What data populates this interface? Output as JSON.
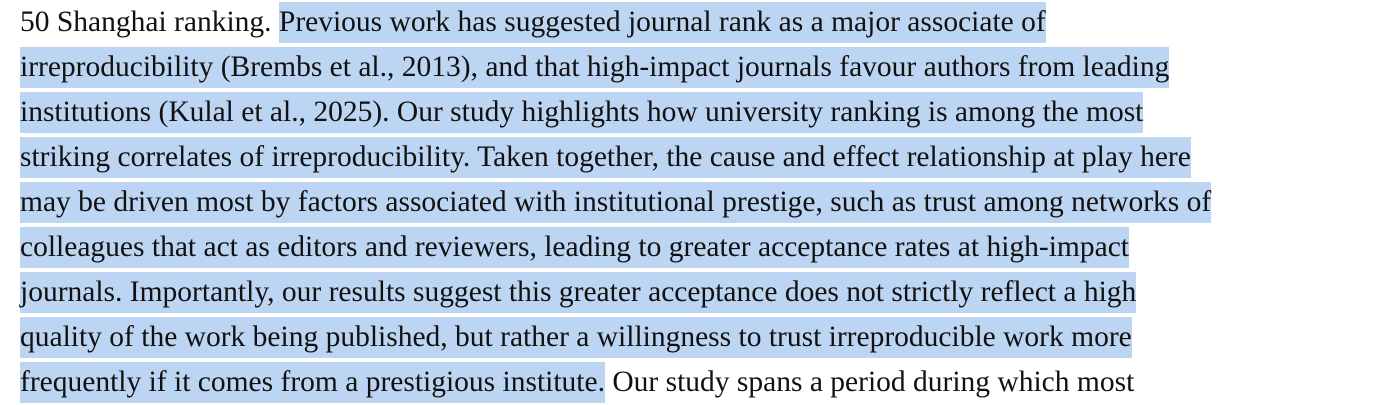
{
  "document": {
    "lines": [
      {
        "before": "50 Shanghai ranking. ",
        "selected": "Previous work has suggested journal rank as a major associate of",
        "after": ""
      },
      {
        "before": "",
        "selected": "irreproducibility (Brembs et al., 2013), and that high-impact journals favour authors from leading",
        "after": ""
      },
      {
        "before": "",
        "selected": "institutions (Kulal et al., 2025). Our study highlights how university ranking is among the most",
        "after": ""
      },
      {
        "before": "",
        "selected": "striking correlates of irreproducibility. Taken together, the cause and effect relationship at play here",
        "after": ""
      },
      {
        "before": "",
        "selected": "may be driven most by factors associated with institutional prestige, such as trust among networks of",
        "after": ""
      },
      {
        "before": "",
        "selected": "colleagues that act as editors and reviewers, leading to greater acceptance rates at high-impact",
        "after": ""
      },
      {
        "before": "",
        "selected": "journals. Importantly, our results suggest this greater acceptance does not strictly reflect a high",
        "after": ""
      },
      {
        "before": "",
        "selected": "quality of the work being published, but rather a willingness to trust irreproducible work more",
        "after": ""
      },
      {
        "before": "",
        "selected": "frequently if it comes from a prestigious institute.",
        "after": " Our study spans a period during which most"
      }
    ]
  },
  "colors": {
    "selection": "#bcd5f2",
    "text": "#111111",
    "background": "#ffffff"
  }
}
